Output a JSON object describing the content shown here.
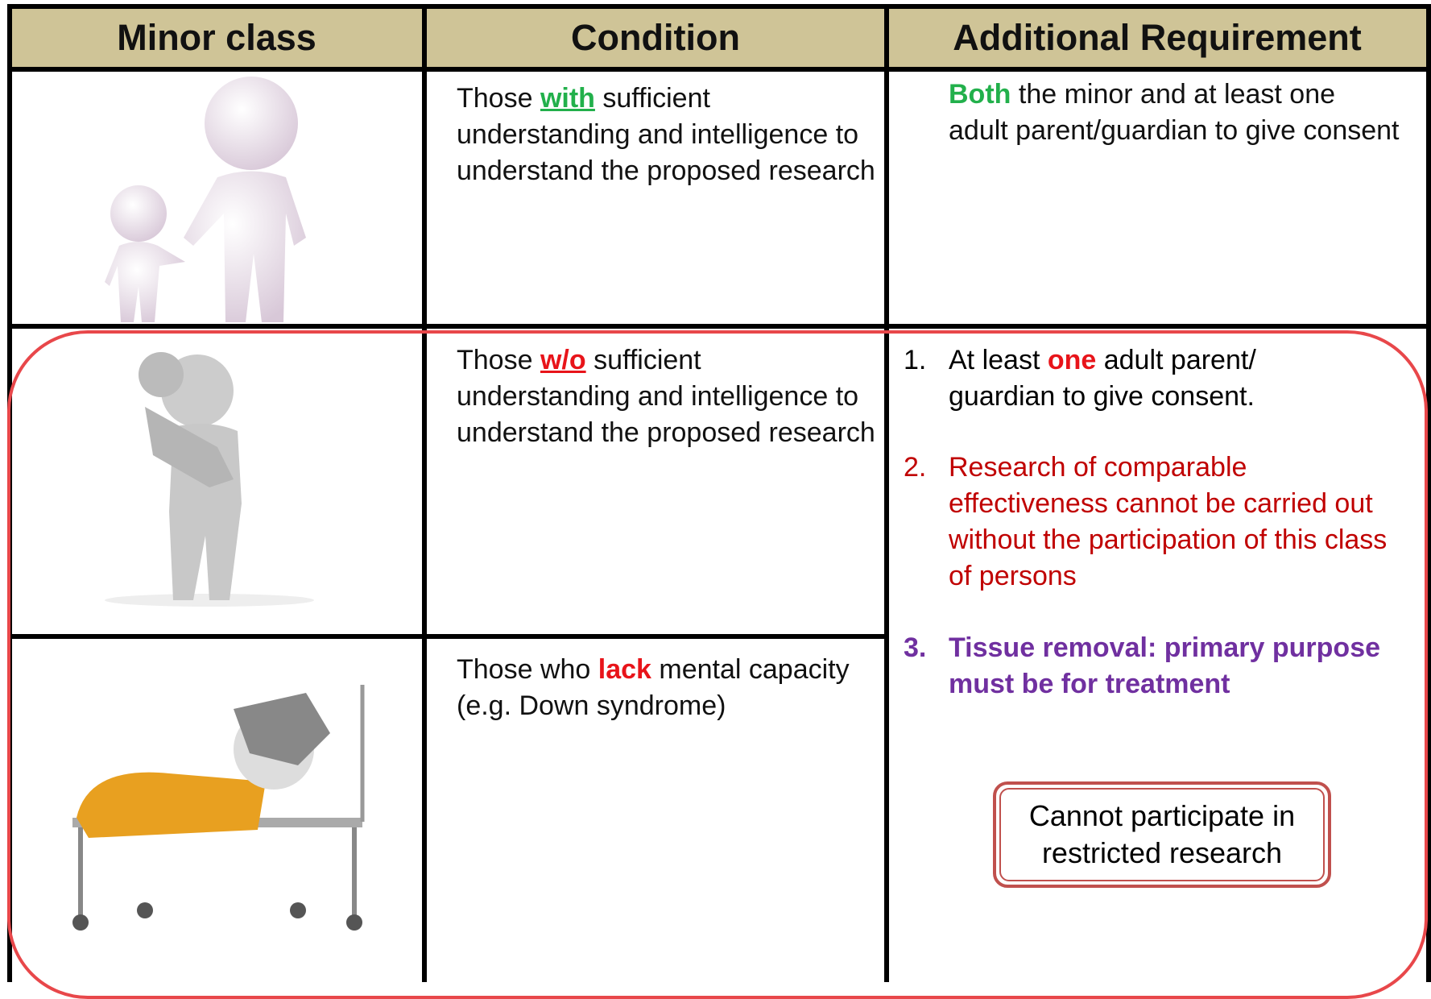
{
  "header": [
    "Minor class",
    "Condition",
    "Additional Requirement"
  ],
  "rows": [
    {
      "condition": [
        "Those ",
        "with",
        " sufficient understanding and intelligence to understand the proposed research"
      ],
      "requirement": [
        "Both",
        " the minor and at least one adult parent/guardian to give consent"
      ]
    },
    {
      "condition": [
        "Those ",
        "w/o",
        " sufficient understanding and intelligence to understand the proposed research"
      ]
    },
    {
      "condition": [
        "Those who ",
        "lack",
        " mental capacity (e.g. Down syndrome)"
      ]
    }
  ],
  "requirements": [
    {
      "number": "1.",
      "text": [
        "At least ",
        "one",
        " adult parent/ guardian to give consent."
      ]
    },
    {
      "number": "2.",
      "text": "Research of comparable effectiveness cannot be carried out without the participation of this class of persons"
    },
    {
      "number": "3.",
      "text": "Tissue removal: primary purpose must be for treatment"
    }
  ],
  "note": "Cannot participate in restricted research"
}
